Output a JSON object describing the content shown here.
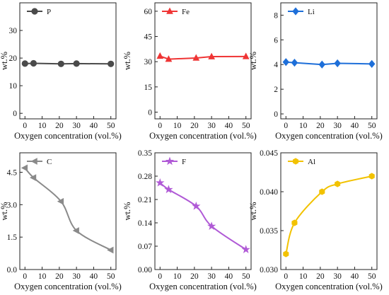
{
  "chart_data": [
    {
      "type": "line",
      "xlabel": "Oxygen concentration (vol.%)",
      "ylabel": "wt.%",
      "xticks": [
        0,
        10,
        20,
        30,
        40,
        50
      ],
      "xlim": [
        -3,
        53
      ],
      "yticks": [
        0,
        10,
        20,
        30
      ],
      "ylim": [
        -2,
        40
      ],
      "series": [
        {
          "name": "P",
          "color": "#4a4a4a",
          "marker": "circle",
          "fit": "line",
          "x": [
            0,
            5,
            21,
            30,
            50
          ],
          "y": [
            18,
            18.1,
            17.9,
            18.0,
            17.9
          ]
        }
      ]
    },
    {
      "type": "line",
      "xlabel": "Oxygen concentration (vol.%)",
      "ylabel": "wt.%",
      "xticks": [
        0,
        10,
        20,
        30,
        40,
        50
      ],
      "xlim": [
        -3,
        53
      ],
      "yticks": [
        0,
        15,
        30,
        45,
        60
      ],
      "ylim": [
        -4,
        65
      ],
      "series": [
        {
          "name": "Fe",
          "color": "#ef3535",
          "marker": "triangle-up",
          "fit": "line",
          "x": [
            0,
            5,
            21,
            30,
            50
          ],
          "y": [
            33.3,
            31.5,
            32.2,
            33.0,
            33.1
          ]
        }
      ]
    },
    {
      "type": "line",
      "xlabel": "Oxygen concentration (vol.%)",
      "ylabel": "wt.%",
      "xticks": [
        0,
        10,
        20,
        30,
        40,
        50
      ],
      "xlim": [
        -3,
        53
      ],
      "yticks": [
        0,
        2,
        4,
        6,
        8
      ],
      "ylim": [
        -0.4,
        9
      ],
      "series": [
        {
          "name": "Li",
          "color": "#1e6fd9",
          "marker": "diamond",
          "fit": "line",
          "x": [
            0,
            5,
            21,
            30,
            50
          ],
          "y": [
            4.2,
            4.15,
            4.0,
            4.1,
            4.05
          ]
        }
      ]
    },
    {
      "type": "line",
      "xlabel": "Oxygen concentration (vol.%)",
      "ylabel": "wt.%",
      "xticks": [
        0,
        10,
        20,
        30,
        40,
        50
      ],
      "xlim": [
        -3,
        53
      ],
      "yticks": [
        0.0,
        1.5,
        3.0,
        4.5
      ],
      "ytick_labels": [
        "0.0",
        "1.5",
        "3.0",
        "4.5"
      ],
      "ylim": [
        0,
        5.4
      ],
      "series": [
        {
          "name": "C",
          "color": "#8a8a8a",
          "marker": "triangle-left",
          "fit": "curve",
          "x": [
            0,
            5,
            21,
            30,
            50
          ],
          "y": [
            4.7,
            4.25,
            3.15,
            1.8,
            0.9
          ]
        }
      ]
    },
    {
      "type": "line",
      "xlabel": "Oxygen concentration (vol.%)",
      "ylabel": "wt.%",
      "xticks": [
        0,
        10,
        20,
        30,
        40,
        50
      ],
      "xlim": [
        -3,
        53
      ],
      "yticks": [
        0.0,
        0.07,
        0.14,
        0.21,
        0.28,
        0.35
      ],
      "ytick_labels": [
        "0.00",
        "0.07",
        "0.14",
        "0.21",
        "0.28",
        "0.35"
      ],
      "ylim": [
        0,
        0.35
      ],
      "series": [
        {
          "name": "F",
          "color": "#b05ad6",
          "marker": "star",
          "fit": "curve",
          "x": [
            0,
            5,
            21,
            30,
            50
          ],
          "y": [
            0.26,
            0.24,
            0.19,
            0.13,
            0.06
          ]
        }
      ]
    },
    {
      "type": "line",
      "xlabel": "Oxygen concentration (vol.%)",
      "ylabel": "wt.%",
      "xticks": [
        0,
        10,
        20,
        30,
        40,
        50
      ],
      "xlim": [
        -3,
        53
      ],
      "yticks": [
        0.03,
        0.035,
        0.04,
        0.045
      ],
      "ytick_labels": [
        "0.030",
        "0.035",
        "0.040",
        "0.045"
      ],
      "ylim": [
        0.03,
        0.045
      ],
      "series": [
        {
          "name": "Al",
          "color": "#f2c200",
          "marker": "hexagon",
          "fit": "curve",
          "x": [
            0,
            5,
            21,
            30,
            50
          ],
          "y": [
            0.032,
            0.036,
            0.04,
            0.041,
            0.042
          ]
        }
      ]
    }
  ]
}
